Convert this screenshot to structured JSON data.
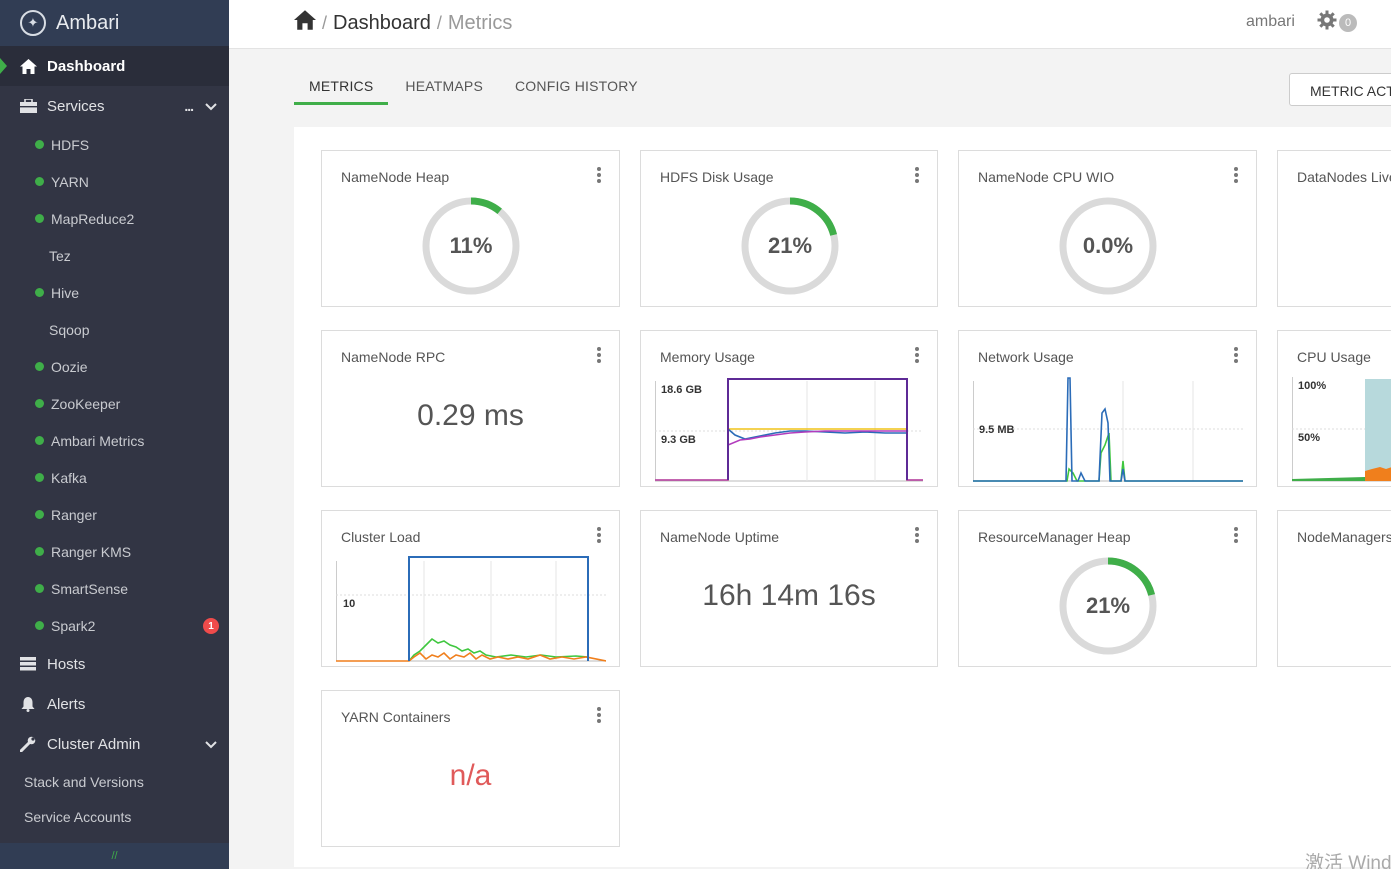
{
  "sidebar": {
    "brand": "Ambari",
    "dashboard": "Dashboard",
    "services": "Services",
    "services_more": "...",
    "service_items": [
      {
        "label": "HDFS",
        "status": "green"
      },
      {
        "label": "YARN",
        "status": "green"
      },
      {
        "label": "MapReduce2",
        "status": "green"
      },
      {
        "label": "Tez",
        "status": "none"
      },
      {
        "label": "Hive",
        "status": "green"
      },
      {
        "label": "Sqoop",
        "status": "none"
      },
      {
        "label": "Oozie",
        "status": "green"
      },
      {
        "label": "ZooKeeper",
        "status": "green"
      },
      {
        "label": "Ambari Metrics",
        "status": "green"
      },
      {
        "label": "Kafka",
        "status": "green"
      },
      {
        "label": "Ranger",
        "status": "green"
      },
      {
        "label": "Ranger KMS",
        "status": "green"
      },
      {
        "label": "SmartSense",
        "status": "green"
      },
      {
        "label": "Spark2",
        "status": "green",
        "alerts": "1"
      }
    ],
    "hosts": "Hosts",
    "alerts": "Alerts",
    "cluster_admin": "Cluster Admin",
    "stack_versions": "Stack and Versions",
    "service_accounts": "Service Accounts"
  },
  "topbar": {
    "breadcrumb_home": "Dashboard",
    "breadcrumb_current": "Metrics",
    "user": "ambari",
    "ops_count": "0"
  },
  "tabs": [
    "METRICS",
    "HEATMAPS",
    "CONFIG HISTORY"
  ],
  "metric_actions": "METRIC ACTIONS",
  "widgets": {
    "namenode_heap": {
      "title": "NameNode Heap",
      "value": "11%",
      "percent": 11
    },
    "hdfs_disk": {
      "title": "HDFS Disk Usage",
      "value": "21%",
      "percent": 21
    },
    "namenode_cpu": {
      "title": "NameNode CPU WIO",
      "value": "0.0%",
      "percent": 0
    },
    "datanodes_live": {
      "title": "DataNodes Live"
    },
    "namenode_rpc": {
      "title": "NameNode RPC",
      "value": "0.29 ms"
    },
    "memory_usage": {
      "title": "Memory Usage",
      "y_top": "18.6 GB",
      "y_mid": "9.3 GB"
    },
    "network_usage": {
      "title": "Network Usage",
      "y_mid": "9.5 MB"
    },
    "cpu_usage": {
      "title": "CPU Usage",
      "y_top": "100%",
      "y_mid": "50%"
    },
    "cluster_load": {
      "title": "Cluster Load",
      "y_mid": "10"
    },
    "namenode_uptime": {
      "title": "NameNode Uptime",
      "value": "16h 14m 16s"
    },
    "rm_heap": {
      "title": "ResourceManager Heap",
      "value": "21%",
      "percent": 21
    },
    "nodemanagers": {
      "title": "NodeManagers Live"
    },
    "yarn_containers": {
      "title": "YARN Containers",
      "value": "n/a"
    }
  },
  "colors": {
    "accent": "#3fae49",
    "sidebar_bg": "#323544",
    "alert": "#ef4b4b",
    "na": "#e05a5a"
  },
  "watermark": "激活 Windows"
}
